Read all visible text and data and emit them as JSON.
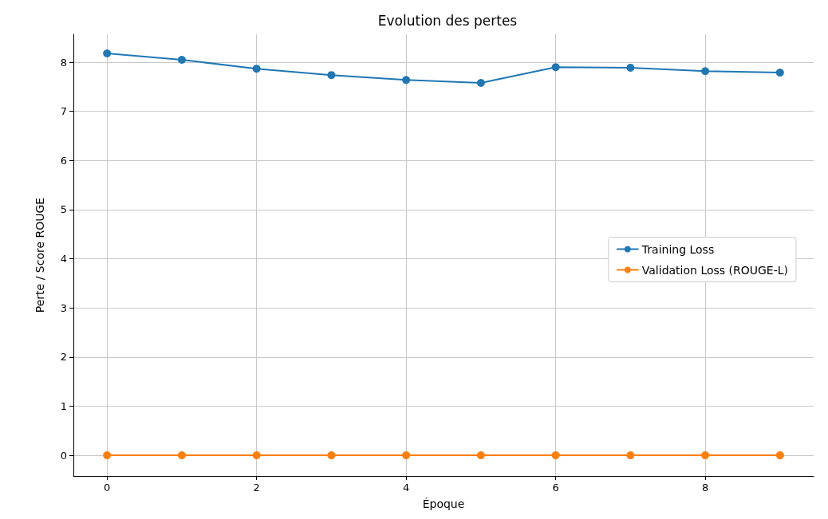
{
  "chart_data": {
    "type": "line",
    "title": "Evolution des pertes",
    "xlabel": "Époque",
    "ylabel": "Perte / Score ROUGE",
    "x": [
      0,
      1,
      2,
      3,
      4,
      5,
      6,
      7,
      8,
      9
    ],
    "series": [
      {
        "name": "Training Loss",
        "color": "#1f77b4",
        "values": [
          8.18,
          8.05,
          7.87,
          7.74,
          7.64,
          7.58,
          7.9,
          7.89,
          7.82,
          7.79
        ]
      },
      {
        "name": "Validation Loss (ROUGE-L)",
        "color": "#ff7f0e",
        "values": [
          0,
          0,
          0,
          0,
          0,
          0,
          0,
          0,
          0,
          0
        ]
      }
    ],
    "xlim": [
      -0.45,
      9.45
    ],
    "xticks": [
      0,
      2,
      4,
      6,
      8
    ],
    "ylim": [
      -0.42,
      8.57
    ],
    "yticks": [
      0,
      1,
      2,
      3,
      4,
      5,
      6,
      7,
      8
    ],
    "grid": true,
    "legend": "right",
    "marker": "circle",
    "line_style": "solid"
  }
}
